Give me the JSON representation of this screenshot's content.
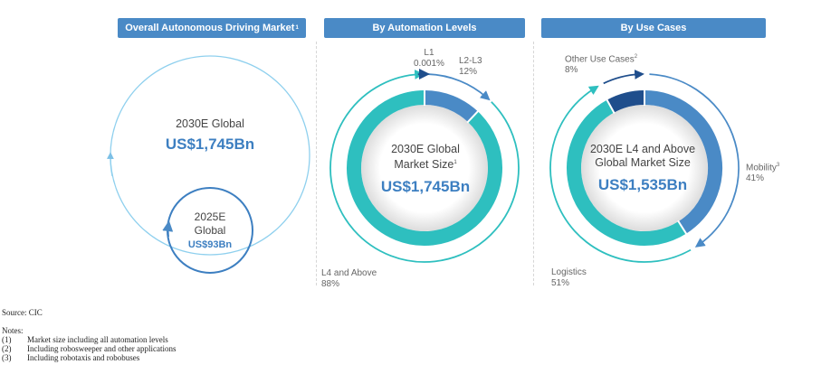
{
  "headers": {
    "overall": "Overall Autonomous Driving Market",
    "overall_note": "1",
    "automation": "By Automation Levels",
    "use_cases": "By Use Cases"
  },
  "overall": {
    "big_title": "2030E Global",
    "big_value": "US$1,745Bn",
    "small_title_line1": "2025E",
    "small_title_line2": "Global",
    "small_value": "US$93Bn"
  },
  "automation": {
    "center_line1": "2030E Global",
    "center_line2": "Market Size",
    "center_note": "1",
    "center_value": "US$1,745Bn"
  },
  "use_cases": {
    "center_line1": "2030E L4 and Above",
    "center_line2": "Global Market Size",
    "center_value": "US$1,535Bn"
  },
  "chart_data": [
    {
      "type": "pie",
      "title": "By Automation Levels",
      "slices": [
        {
          "label": "L1",
          "value_label": "0.001%",
          "value": 0.001,
          "color": "#1f4e8c"
        },
        {
          "label": "L2-L3",
          "value_label": "12%",
          "value": 12,
          "color": "#4a8ac6"
        },
        {
          "label": "L4 and Above",
          "value_label": "88%",
          "value": 88,
          "color": "#2ebfbf"
        }
      ]
    },
    {
      "type": "pie",
      "title": "By Use Cases",
      "slices": [
        {
          "label": "Other Use Cases",
          "note": "2",
          "value_label": "8%",
          "value": 8,
          "color": "#1f4e8c"
        },
        {
          "label": "Mobility",
          "note": "3",
          "value_label": "41%",
          "value": 41,
          "color": "#4a8ac6"
        },
        {
          "label": "Logistics",
          "value_label": "51%",
          "value": 51,
          "color": "#2ebfbf"
        }
      ]
    }
  ],
  "source": "Source: CIC",
  "notes_title": "Notes:",
  "notes": [
    {
      "num": "(1)",
      "text": "Market size including all automation levels"
    },
    {
      "num": "(2)",
      "text": "Including robosweeper and other applications"
    },
    {
      "num": "(3)",
      "text": "Including robotaxis and robobuses"
    }
  ]
}
